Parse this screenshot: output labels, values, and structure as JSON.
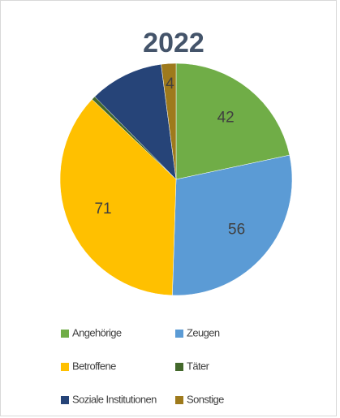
{
  "chart_data": {
    "type": "pie",
    "title": "2022",
    "categories": [
      "Angehörige",
      "Zeugen",
      "Betroffene",
      "Täter",
      "Soziale Institutionen",
      "Sonstige"
    ],
    "values": [
      42,
      56,
      71,
      1,
      20,
      4
    ],
    "value_labels": [
      "42",
      "56",
      "71",
      null,
      null,
      "4"
    ],
    "colors": [
      "#70ad47",
      "#5b9bd5",
      "#ffc000",
      "#43682b",
      "#264478",
      "#9e7a1c"
    ],
    "legend": "bottom"
  }
}
